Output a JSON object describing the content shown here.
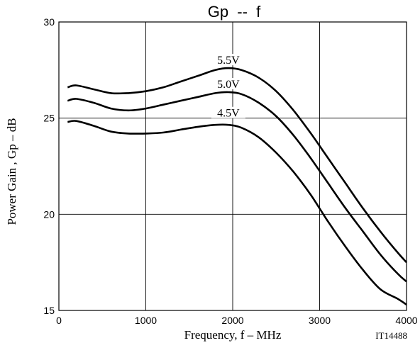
{
  "chart_data": {
    "type": "line",
    "title": "Gp  --  f",
    "xlabel": "Frequency, f  –  MHz",
    "ylabel": "Power Gain , Gp  –  dB",
    "note": "IT14488",
    "xlim": [
      0,
      4000
    ],
    "ylim": [
      15,
      30
    ],
    "xticks": [
      0,
      1000,
      2000,
      3000,
      4000
    ],
    "yticks": [
      15,
      20,
      25,
      30
    ],
    "xtick_labels": [
      "0",
      "1000",
      "2000",
      "3000",
      "4000"
    ],
    "ytick_labels": [
      "15",
      "20",
      "25",
      "30"
    ],
    "grid": true,
    "series": [
      {
        "name": "5.5V",
        "x": [
          100,
          200,
          400,
          600,
          800,
          1000,
          1200,
          1400,
          1600,
          1800,
          1950,
          2100,
          2300,
          2500,
          2700,
          2900,
          3100,
          3300,
          3500,
          3700,
          3900,
          4000
        ],
        "y": [
          26.6,
          26.7,
          26.5,
          26.3,
          26.3,
          26.4,
          26.6,
          26.9,
          27.2,
          27.5,
          27.6,
          27.5,
          27.1,
          26.4,
          25.4,
          24.2,
          22.9,
          21.6,
          20.3,
          19.1,
          18.0,
          17.5
        ]
      },
      {
        "name": "5.0V",
        "x": [
          100,
          200,
          400,
          600,
          800,
          1000,
          1200,
          1400,
          1600,
          1800,
          1950,
          2100,
          2300,
          2500,
          2700,
          2900,
          3100,
          3300,
          3500,
          3700,
          3900,
          4000
        ],
        "y": [
          25.9,
          26.0,
          25.8,
          25.5,
          25.4,
          25.5,
          25.7,
          25.9,
          26.1,
          26.3,
          26.35,
          26.25,
          25.8,
          25.1,
          24.1,
          22.9,
          21.6,
          20.3,
          19.1,
          17.9,
          16.9,
          16.5
        ]
      },
      {
        "name": "4.5V",
        "x": [
          100,
          200,
          400,
          600,
          800,
          1000,
          1200,
          1400,
          1600,
          1800,
          1950,
          2100,
          2300,
          2500,
          2700,
          2900,
          3100,
          3300,
          3500,
          3700,
          3900,
          4000
        ],
        "y": [
          24.8,
          24.85,
          24.6,
          24.3,
          24.2,
          24.2,
          24.25,
          24.4,
          24.55,
          24.65,
          24.65,
          24.5,
          24.0,
          23.2,
          22.2,
          21.0,
          19.6,
          18.3,
          17.1,
          16.1,
          15.6,
          15.3
        ]
      }
    ]
  }
}
